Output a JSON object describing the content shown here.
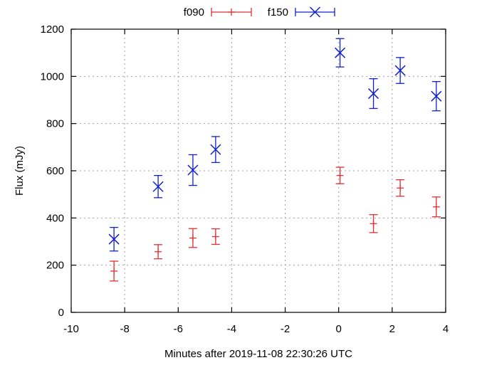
{
  "chart_data": {
    "type": "scatter",
    "title": "",
    "xlabel": "Minutes after 2019-11-08 22:30:26 UTC",
    "ylabel": "Flux (mJy)",
    "xlim": [
      -10,
      4
    ],
    "ylim": [
      0,
      1200
    ],
    "xticks": [
      -10,
      -8,
      -6,
      -4,
      -2,
      0,
      2,
      4
    ],
    "yticks": [
      0,
      200,
      400,
      600,
      800,
      1000,
      1200
    ],
    "grid": true,
    "legend": "top-center",
    "series": [
      {
        "name": "f090",
        "color": "#e03030",
        "marker": "plus",
        "points": [
          {
            "x": -8.4,
            "y": 175,
            "yerr": 42
          },
          {
            "x": -6.75,
            "y": 257,
            "yerr": 30
          },
          {
            "x": -5.45,
            "y": 315,
            "yerr": 40
          },
          {
            "x": -4.6,
            "y": 321,
            "yerr": 33
          },
          {
            "x": 0.05,
            "y": 580,
            "yerr": 35
          },
          {
            "x": 1.3,
            "y": 376,
            "yerr": 38
          },
          {
            "x": 2.3,
            "y": 527,
            "yerr": 35
          },
          {
            "x": 3.65,
            "y": 447,
            "yerr": 42
          }
        ]
      },
      {
        "name": "f150",
        "color": "#1020d0",
        "marker": "cross",
        "points": [
          {
            "x": -8.4,
            "y": 310,
            "yerr": 50
          },
          {
            "x": -6.75,
            "y": 533,
            "yerr": 47
          },
          {
            "x": -5.45,
            "y": 603,
            "yerr": 65
          },
          {
            "x": -4.6,
            "y": 690,
            "yerr": 55
          },
          {
            "x": 0.05,
            "y": 1100,
            "yerr": 60
          },
          {
            "x": 1.3,
            "y": 927,
            "yerr": 63
          },
          {
            "x": 2.3,
            "y": 1025,
            "yerr": 55
          },
          {
            "x": 3.65,
            "y": 916,
            "yerr": 62
          }
        ]
      }
    ]
  }
}
